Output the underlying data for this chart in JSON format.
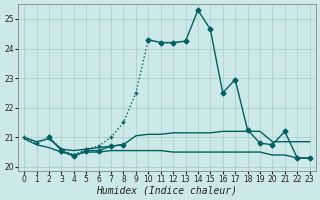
{
  "xlabel": "Humidex (Indice chaleur)",
  "background_color": "#cce8e8",
  "grid_color": "#aacccc",
  "line_color": "#006060",
  "xlim": [
    -0.5,
    23.5
  ],
  "ylim": [
    19.85,
    25.5
  ],
  "yticks": [
    20,
    21,
    22,
    23,
    24,
    25
  ],
  "xticks": [
    0,
    1,
    2,
    3,
    4,
    5,
    6,
    7,
    8,
    9,
    10,
    11,
    12,
    13,
    14,
    15,
    16,
    17,
    18,
    19,
    20,
    21,
    22,
    23
  ],
  "series": [
    {
      "x_dot": [
        0,
        1,
        2,
        3,
        4,
        5,
        6,
        7,
        8,
        9,
        10,
        11,
        12,
        13
      ],
      "y_dot": [
        21.0,
        20.8,
        21.0,
        20.6,
        20.4,
        20.6,
        20.7,
        21.0,
        21.5,
        22.5,
        24.3,
        24.2,
        24.2,
        24.25
      ],
      "x_solid": [
        10,
        11,
        12,
        13,
        14,
        15,
        16,
        17,
        18,
        19,
        20,
        21,
        22,
        23
      ],
      "y_solid": [
        24.3,
        24.2,
        24.2,
        24.25,
        25.3,
        24.65,
        22.5,
        22.95,
        21.25,
        20.8,
        20.75,
        21.2,
        20.3,
        20.3
      ]
    },
    {
      "x": [
        0,
        1,
        2,
        3,
        4,
        5,
        6,
        7,
        8,
        9,
        10,
        11,
        12,
        13,
        14,
        15,
        16,
        17,
        18,
        19,
        20,
        21,
        22,
        23
      ],
      "y": [
        21.0,
        20.85,
        20.95,
        20.6,
        20.55,
        20.6,
        20.65,
        20.7,
        20.75,
        21.05,
        21.1,
        21.1,
        21.15,
        21.15,
        21.15,
        21.15,
        21.2,
        21.2,
        21.2,
        21.2,
        20.85,
        20.85,
        20.85,
        20.85
      ]
    },
    {
      "x": [
        0,
        1,
        2,
        3,
        4,
        5,
        6,
        7,
        8,
        9,
        10,
        11,
        12,
        13,
        14,
        15,
        16,
        17,
        18,
        19,
        20,
        21,
        22,
        23
      ],
      "y": [
        20.95,
        20.75,
        20.65,
        20.5,
        20.4,
        20.5,
        20.5,
        20.55,
        20.55,
        20.55,
        20.55,
        20.55,
        20.5,
        20.5,
        20.5,
        20.5,
        20.5,
        20.5,
        20.5,
        20.5,
        20.4,
        20.4,
        20.3,
        20.3
      ]
    },
    {
      "x": [
        2,
        3,
        4,
        5,
        6,
        7,
        8
      ],
      "y": [
        21.0,
        20.55,
        20.35,
        20.55,
        20.55,
        20.7,
        20.75
      ]
    }
  ]
}
